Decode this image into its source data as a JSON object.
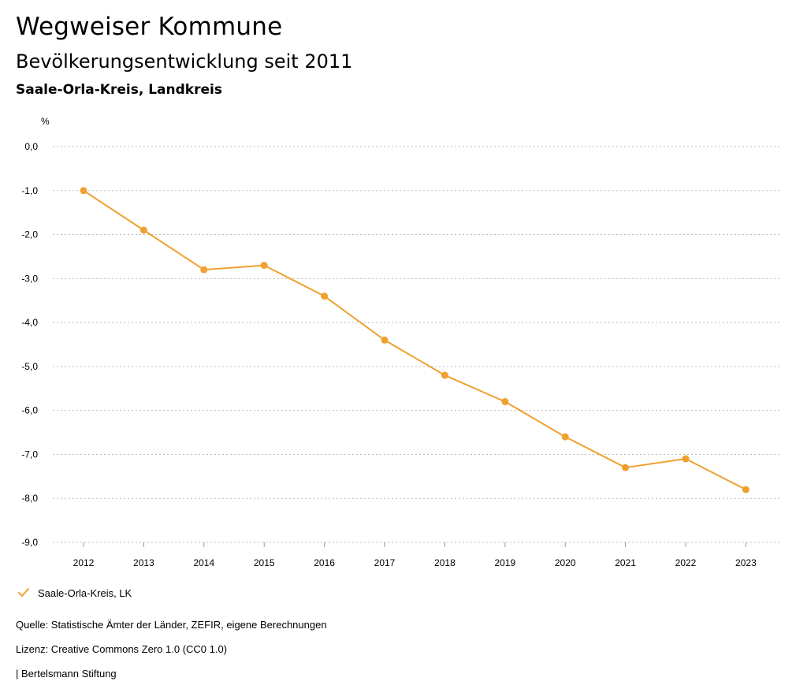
{
  "header": {
    "title": "Wegweiser Kommune",
    "subtitle": "Bevölkerungsentwicklung seit 2011",
    "region": "Saale-Orla-Kreis, Landkreis"
  },
  "chart_data": {
    "type": "line",
    "ylabel": "%",
    "xlabel": "",
    "categories": [
      "2012",
      "2013",
      "2014",
      "2015",
      "2016",
      "2017",
      "2018",
      "2019",
      "2020",
      "2021",
      "2022",
      "2023"
    ],
    "series": [
      {
        "name": "Saale-Orla-Kreis, LK",
        "color": "#f0a030",
        "values": [
          -1.0,
          -1.9,
          -2.8,
          -2.7,
          -3.4,
          -4.4,
          -5.2,
          -5.8,
          -6.6,
          -7.3,
          -7.1,
          -7.8
        ]
      }
    ],
    "ylim": [
      -9.0,
      0.0
    ],
    "yticks": [
      0.0,
      -1.0,
      -2.0,
      -3.0,
      -4.0,
      -5.0,
      -6.0,
      -7.0,
      -8.0,
      -9.0
    ],
    "ytick_labels": [
      "0,0",
      "-1,0",
      "-2,0",
      "-3,0",
      "-4,0",
      "-5,0",
      "-6,0",
      "-7,0",
      "-8,0",
      "-9,0"
    ],
    "grid": true,
    "legend_position": "bottom-left"
  },
  "legend": {
    "label": "Saale-Orla-Kreis, LK",
    "icon": "check-icon"
  },
  "footer": {
    "source": "Quelle: Statistische Ämter der Länder, ZEFIR, eigene Berechnungen",
    "license": "Lizenz: Creative Commons Zero 1.0 (CC0 1.0)",
    "publisher": "| Bertelsmann Stiftung"
  },
  "colors": {
    "series": "#f0a030",
    "grid": "#bbbbbb"
  }
}
